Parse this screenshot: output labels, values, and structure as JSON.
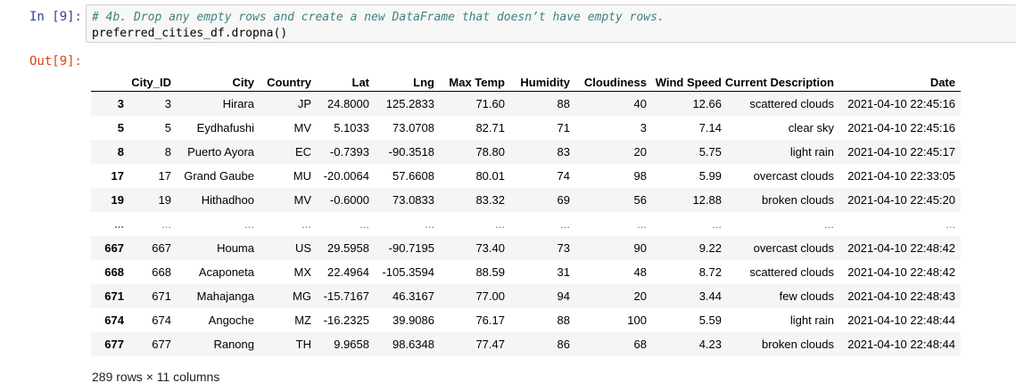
{
  "cell": {
    "in_prompt": "In [9]:",
    "out_prompt": "Out[9]:",
    "code_comment": "# 4b. Drop any empty rows and create a new DataFrame that doesn’t have empty rows.",
    "code_line": "preferred_cities_df.dropna()"
  },
  "table": {
    "columns": [
      "",
      "City_ID",
      "City",
      "Country",
      "Lat",
      "Lng",
      "Max Temp",
      "Humidity",
      "Cloudiness",
      "Wind Speed",
      "Current Description",
      "Date"
    ],
    "rows": [
      [
        "3",
        "3",
        "Hirara",
        "JP",
        "24.8000",
        "125.2833",
        "71.60",
        "88",
        "40",
        "12.66",
        "scattered clouds",
        "2021-04-10 22:45:16"
      ],
      [
        "5",
        "5",
        "Eydhafushi",
        "MV",
        "5.1033",
        "73.0708",
        "82.71",
        "71",
        "3",
        "7.14",
        "clear sky",
        "2021-04-10 22:45:16"
      ],
      [
        "8",
        "8",
        "Puerto Ayora",
        "EC",
        "-0.7393",
        "-90.3518",
        "78.80",
        "83",
        "20",
        "5.75",
        "light rain",
        "2021-04-10 22:45:17"
      ],
      [
        "17",
        "17",
        "Grand Gaube",
        "MU",
        "-20.0064",
        "57.6608",
        "80.01",
        "74",
        "98",
        "5.99",
        "overcast clouds",
        "2021-04-10 22:33:05"
      ],
      [
        "19",
        "19",
        "Hithadhoo",
        "MV",
        "-0.6000",
        "73.0833",
        "83.32",
        "69",
        "56",
        "12.88",
        "broken clouds",
        "2021-04-10 22:45:20"
      ],
      [
        "...",
        "...",
        "...",
        "...",
        "...",
        "...",
        "...",
        "...",
        "...",
        "...",
        "...",
        "..."
      ],
      [
        "667",
        "667",
        "Houma",
        "US",
        "29.5958",
        "-90.7195",
        "73.40",
        "73",
        "90",
        "9.22",
        "overcast clouds",
        "2021-04-10 22:48:42"
      ],
      [
        "668",
        "668",
        "Acaponeta",
        "MX",
        "22.4964",
        "-105.3594",
        "88.59",
        "31",
        "48",
        "8.72",
        "scattered clouds",
        "2021-04-10 22:48:42"
      ],
      [
        "671",
        "671",
        "Mahajanga",
        "MG",
        "-15.7167",
        "46.3167",
        "77.00",
        "94",
        "20",
        "3.44",
        "few clouds",
        "2021-04-10 22:48:43"
      ],
      [
        "674",
        "674",
        "Angoche",
        "MZ",
        "-16.2325",
        "39.9086",
        "76.17",
        "88",
        "100",
        "5.59",
        "light rain",
        "2021-04-10 22:48:44"
      ],
      [
        "677",
        "677",
        "Ranong",
        "TH",
        "9.9658",
        "98.6348",
        "77.47",
        "86",
        "68",
        "4.23",
        "broken clouds",
        "2021-04-10 22:48:44"
      ]
    ]
  },
  "summary": "289 rows × 11 columns"
}
